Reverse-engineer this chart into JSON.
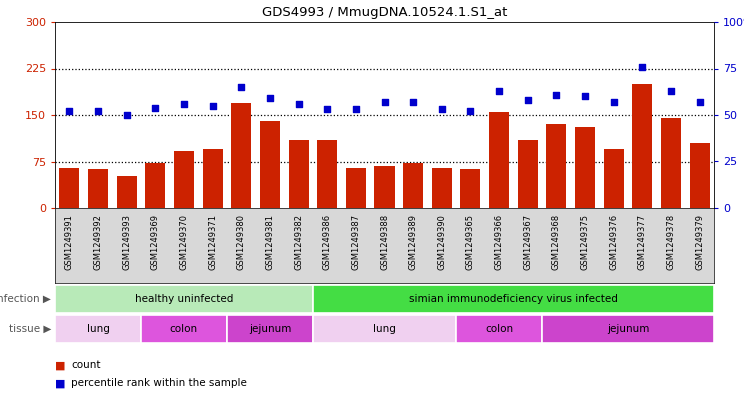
{
  "title": "GDS4993 / MmugDNA.10524.1.S1_at",
  "samples": [
    "GSM1249391",
    "GSM1249392",
    "GSM1249393",
    "GSM1249369",
    "GSM1249370",
    "GSM1249371",
    "GSM1249380",
    "GSM1249381",
    "GSM1249382",
    "GSM1249386",
    "GSM1249387",
    "GSM1249388",
    "GSM1249389",
    "GSM1249390",
    "GSM1249365",
    "GSM1249366",
    "GSM1249367",
    "GSM1249368",
    "GSM1249375",
    "GSM1249376",
    "GSM1249377",
    "GSM1249378",
    "GSM1249379"
  ],
  "counts": [
    65,
    63,
    52,
    73,
    92,
    95,
    170,
    140,
    110,
    110,
    65,
    68,
    73,
    65,
    63,
    155,
    110,
    135,
    130,
    95,
    200,
    145,
    105
  ],
  "percentiles": [
    52,
    52,
    50,
    54,
    56,
    55,
    65,
    59,
    56,
    53,
    53,
    57,
    57,
    53,
    52,
    63,
    58,
    61,
    60,
    57,
    76,
    63,
    57
  ],
  "ylim_left": [
    0,
    300
  ],
  "ylim_right": [
    0,
    100
  ],
  "yticks_left": [
    0,
    75,
    150,
    225,
    300
  ],
  "yticks_right": [
    0,
    25,
    50,
    75,
    100
  ],
  "bar_color": "#cc2200",
  "dot_color": "#0000cc",
  "xtick_bg": "#d8d8d8",
  "infection_groups": [
    {
      "label": "healthy uninfected",
      "start": 0,
      "end": 9,
      "color": "#b8eab8"
    },
    {
      "label": "simian immunodeficiency virus infected",
      "start": 9,
      "end": 23,
      "color": "#44dd44"
    }
  ],
  "tissue_groups": [
    {
      "label": "lung",
      "start": 0,
      "end": 3,
      "color": "#f0d0f0"
    },
    {
      "label": "colon",
      "start": 3,
      "end": 6,
      "color": "#e060e0"
    },
    {
      "label": "jejunum",
      "start": 6,
      "end": 9,
      "color": "#e060e0"
    },
    {
      "label": "lung",
      "start": 9,
      "end": 14,
      "color": "#f0d0f0"
    },
    {
      "label": "colon",
      "start": 14,
      "end": 17,
      "color": "#e060e0"
    },
    {
      "label": "jejunum",
      "start": 17,
      "end": 23,
      "color": "#e060e0"
    }
  ],
  "tissue_colors": {
    "lung": "#f0d0f0",
    "colon": "#dd55dd",
    "jejunum": "#cc44cc"
  },
  "infection_label": "infection",
  "tissue_label": "tissue",
  "legend_count_label": "count",
  "legend_pct_label": "percentile rank within the sample"
}
